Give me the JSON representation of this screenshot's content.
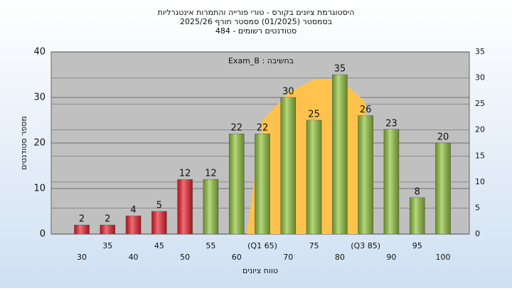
{
  "chart_data": {
    "type": "bar",
    "title": [
      "היסטוגרמת ציונים בקורס - טורי פורייה והתמרות אינטגרליות",
      "בסמסטר (01/2025) סמסטר חורף 2025/26",
      "סטודנטים רשומים - 484"
    ],
    "annotation": "בחשיבה : Exam_B",
    "ylabel": "מספר סטודנטים",
    "xlabel": "טווח ציונים",
    "categories": [
      "30",
      "35",
      "40",
      "45",
      "50",
      "55",
      "60",
      "(Q1 65)",
      "70",
      "75",
      "80",
      "(Q3 85)",
      "90",
      "95",
      "100"
    ],
    "series": [
      {
        "values": [
          2,
          2,
          4,
          5,
          12,
          12,
          22,
          22,
          30,
          25,
          35,
          26,
          23,
          8,
          20
        ],
        "colors": [
          "#e8202a",
          "#e8202a",
          "#e8202a",
          "#e8202a",
          "#e8202a",
          "#8fc23a",
          "#8fc23a",
          "#8fc23a",
          "#8fc23a",
          "#8fc23a",
          "#8fc23a",
          "#8fc23a",
          "#8fc23a",
          "#8fc23a",
          "#8fc23a"
        ]
      }
    ],
    "area": {
      "x": [
        62,
        65,
        70,
        75,
        80,
        85,
        86
      ],
      "values": [
        0,
        25,
        31,
        34,
        34,
        29,
        0
      ],
      "color": "#ffc34d"
    },
    "ylim": [
      0,
      40
    ],
    "yticks": [
      0,
      10,
      20,
      30,
      40
    ],
    "y2lim": [
      0,
      35
    ],
    "y2ticks": [
      0,
      5,
      10,
      15,
      20,
      25,
      30,
      35
    ],
    "grid": true
  }
}
